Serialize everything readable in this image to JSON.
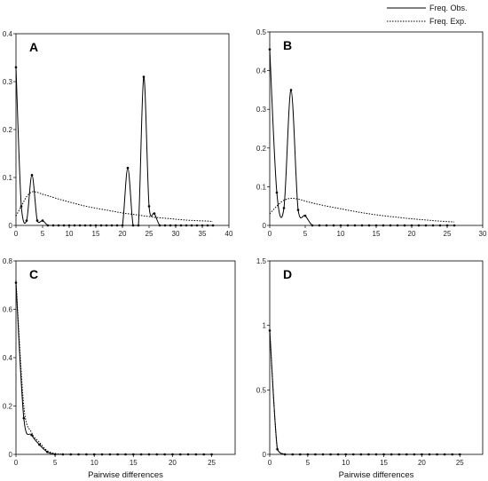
{
  "legend": {
    "obs_label": "Freq. Obs.",
    "exp_label": "Freq. Exp.",
    "placement": "top-right"
  },
  "chart_data": [
    {
      "type": "line",
      "panel": "A",
      "xlabel": "",
      "xlim": [
        0,
        40
      ],
      "ylim": [
        0,
        0.4
      ],
      "xticks": [
        "0",
        "5",
        "10",
        "15",
        "20",
        "25",
        "30",
        "35",
        "40"
      ],
      "yticks": [
        "0",
        "0.1",
        "0.2",
        "0.3",
        "0.4"
      ],
      "series": [
        {
          "name": "Freq. Obs.",
          "style": "solid",
          "markers": true,
          "x": [
            0,
            1,
            2,
            3,
            4,
            5,
            6,
            7,
            8,
            9,
            10,
            11,
            12,
            13,
            14,
            15,
            16,
            17,
            18,
            19,
            20,
            21,
            22,
            23,
            24,
            25,
            26,
            27,
            28,
            29,
            30,
            31,
            32,
            33,
            34,
            35,
            36,
            37
          ],
          "y": [
            0.33,
            0.04,
            0.01,
            0.105,
            0.01,
            0.01,
            0,
            0,
            0,
            0,
            0,
            0,
            0,
            0,
            0,
            0,
            0,
            0,
            0,
            0,
            0,
            0.12,
            0,
            0,
            0.31,
            0.04,
            0.025,
            0,
            0,
            0,
            0,
            0,
            0,
            0,
            0,
            0,
            0,
            0
          ]
        },
        {
          "name": "Freq. Exp.",
          "style": "dotted",
          "markers": false,
          "x": [
            0,
            1,
            2,
            3,
            4,
            5,
            6,
            8,
            10,
            12,
            14,
            16,
            18,
            20,
            22,
            24,
            26,
            28,
            30,
            32,
            34,
            36,
            37
          ],
          "y": [
            0.02,
            0.04,
            0.06,
            0.07,
            0.069,
            0.065,
            0.062,
            0.055,
            0.049,
            0.043,
            0.038,
            0.034,
            0.03,
            0.026,
            0.023,
            0.02,
            0.017,
            0.015,
            0.013,
            0.011,
            0.01,
            0.009,
            0.008
          ]
        }
      ]
    },
    {
      "type": "line",
      "panel": "B",
      "xlabel": "",
      "xlim": [
        0,
        30
      ],
      "ylim": [
        0,
        0.5
      ],
      "xticks": [
        "0",
        "5",
        "10",
        "15",
        "20",
        "25",
        "30"
      ],
      "yticks": [
        "0",
        "0.1",
        "0.2",
        "0.3",
        "0.4",
        "0.5"
      ],
      "series": [
        {
          "name": "Freq. Obs.",
          "style": "solid",
          "markers": true,
          "x": [
            0,
            1,
            2,
            3,
            4,
            5,
            6,
            7,
            8,
            9,
            10,
            11,
            12,
            13,
            14,
            15,
            16,
            17,
            18,
            19,
            20,
            21,
            22,
            23,
            24,
            25,
            26
          ],
          "y": [
            0.455,
            0.085,
            0.045,
            0.35,
            0.04,
            0.025,
            0,
            0,
            0,
            0,
            0,
            0,
            0,
            0,
            0,
            0,
            0,
            0,
            0,
            0,
            0,
            0,
            0,
            0,
            0,
            0,
            0
          ]
        },
        {
          "name": "Freq. Exp.",
          "style": "dotted",
          "markers": false,
          "x": [
            0,
            1,
            2,
            3,
            4,
            5,
            6,
            8,
            10,
            12,
            14,
            16,
            18,
            20,
            22,
            24,
            26
          ],
          "y": [
            0.03,
            0.05,
            0.065,
            0.07,
            0.068,
            0.063,
            0.058,
            0.05,
            0.043,
            0.036,
            0.03,
            0.025,
            0.021,
            0.017,
            0.014,
            0.011,
            0.009
          ]
        }
      ]
    },
    {
      "type": "line",
      "panel": "C",
      "xlabel": "Pairwise differences",
      "xlim": [
        0,
        28
      ],
      "ylim": [
        0,
        0.8
      ],
      "xticks": [
        "0",
        "5",
        "10",
        "15",
        "20",
        "25"
      ],
      "yticks": [
        "0",
        "0.2",
        "0.4",
        "0.6",
        "0.8"
      ],
      "series": [
        {
          "name": "Freq. Obs.",
          "style": "solid",
          "markers": true,
          "x": [
            0,
            1,
            2,
            3,
            4,
            5,
            6,
            7,
            8,
            9,
            10,
            11,
            12,
            13,
            14,
            15,
            16,
            17,
            18,
            19,
            20,
            21,
            22,
            23,
            24,
            25
          ],
          "y": [
            0.71,
            0.15,
            0.08,
            0.04,
            0.01,
            0,
            0,
            0,
            0,
            0,
            0,
            0,
            0,
            0,
            0,
            0,
            0,
            0,
            0,
            0,
            0,
            0,
            0,
            0,
            0,
            0
          ]
        },
        {
          "name": "Freq. Exp.",
          "style": "dotted",
          "markers": false,
          "x": [
            0,
            1,
            2,
            3,
            4,
            5,
            6,
            8,
            10,
            15,
            20,
            25
          ],
          "y": [
            0.72,
            0.2,
            0.09,
            0.05,
            0.015,
            0.004,
            0.001,
            0,
            0,
            0,
            0,
            0
          ]
        }
      ]
    },
    {
      "type": "line",
      "panel": "D",
      "xlabel": "Pairwise differences",
      "xlim": [
        0,
        28
      ],
      "ylim": [
        0,
        1.5
      ],
      "xticks": [
        "0",
        "5",
        "10",
        "15",
        "20",
        "25"
      ],
      "yticks": [
        "0",
        "0.5",
        "1",
        "1.5"
      ],
      "series": [
        {
          "name": "Freq. Obs.",
          "style": "solid",
          "markers": true,
          "x": [
            0,
            1,
            2,
            3,
            4,
            5,
            6,
            7,
            8,
            9,
            10,
            11,
            12,
            13,
            14,
            15,
            16,
            17,
            18,
            19,
            20,
            21,
            22,
            23,
            24,
            25
          ],
          "y": [
            0.96,
            0.04,
            0,
            0,
            0,
            0,
            0,
            0,
            0,
            0,
            0,
            0,
            0,
            0,
            0,
            0,
            0,
            0,
            0,
            0,
            0,
            0,
            0,
            0,
            0,
            0
          ]
        },
        {
          "name": "Freq. Exp.",
          "style": "dotted",
          "markers": false,
          "x": [
            0,
            1,
            2,
            3,
            5,
            10,
            15,
            20,
            25
          ],
          "y": [
            0.96,
            0.04,
            0.002,
            0,
            0,
            0,
            0,
            0,
            0
          ]
        }
      ]
    }
  ]
}
